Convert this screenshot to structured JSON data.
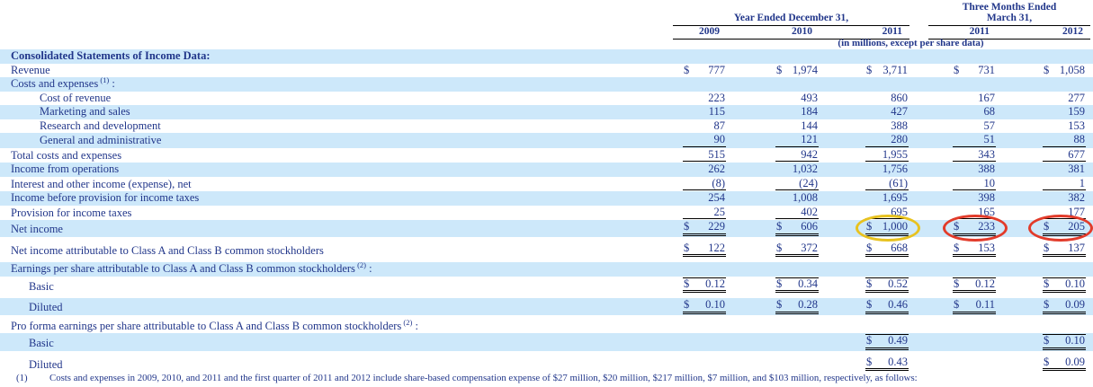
{
  "colors": {
    "text_navy": "#21368a",
    "band_blue": "#cde8fa",
    "rule_black": "#000000",
    "ring_yellow": "#e8c21f",
    "ring_red": "#e23b2a"
  },
  "header": {
    "annual_group_label": "Year Ended December 31,",
    "quarter_group_label_line1": "Three Months Ended",
    "quarter_group_label_line2": "March 31,",
    "year_columns": [
      "2009",
      "2010",
      "2011",
      "2011",
      "2012"
    ],
    "units_note": "(in millions, except per share data)"
  },
  "table": {
    "rows": [
      {
        "id": "section-income-data",
        "label": "Consolidated Statements of Income Data:",
        "bold": true,
        "shaded": true,
        "indent": 0,
        "cells": [
          null,
          null,
          null,
          null,
          null
        ]
      },
      {
        "id": "revenue",
        "label": "Revenue",
        "indent": 0,
        "cells": [
          {
            "d": "$",
            "v": "777"
          },
          {
            "d": "$",
            "v": "1,974"
          },
          {
            "d": "$",
            "v": "3,711"
          },
          {
            "d": "$",
            "v": "731"
          },
          {
            "d": "$",
            "v": "1,058"
          }
        ]
      },
      {
        "id": "costs-and-expenses",
        "label": "Costs and expenses",
        "sup": "(1)",
        "suffix": ":",
        "shaded": true,
        "indent": 0,
        "cells": [
          null,
          null,
          null,
          null,
          null
        ]
      },
      {
        "id": "cost-of-revenue",
        "label": "Cost of revenue",
        "indent": 2,
        "cells": [
          {
            "v": "223"
          },
          {
            "v": "493"
          },
          {
            "v": "860"
          },
          {
            "v": "167"
          },
          {
            "v": "277"
          }
        ]
      },
      {
        "id": "marketing-and-sales",
        "label": "Marketing and sales",
        "shaded": true,
        "indent": 2,
        "cells": [
          {
            "v": "115"
          },
          {
            "v": "184"
          },
          {
            "v": "427"
          },
          {
            "v": "68"
          },
          {
            "v": "159"
          }
        ]
      },
      {
        "id": "research-and-development",
        "label": "Research and development",
        "indent": 2,
        "cells": [
          {
            "v": "87"
          },
          {
            "v": "144"
          },
          {
            "v": "388"
          },
          {
            "v": "57"
          },
          {
            "v": "153"
          }
        ]
      },
      {
        "id": "general-and-administrative",
        "label": "General and administrative",
        "shaded": true,
        "indent": 2,
        "rule": "single",
        "cells": [
          {
            "v": "90"
          },
          {
            "v": "121"
          },
          {
            "v": "280"
          },
          {
            "v": "51"
          },
          {
            "v": "88"
          }
        ]
      },
      {
        "id": "total-costs-and-expenses",
        "label": "Total costs and expenses",
        "indent": 0,
        "rule": "single",
        "cells": [
          {
            "v": "515"
          },
          {
            "v": "942"
          },
          {
            "v": "1,955"
          },
          {
            "v": "343"
          },
          {
            "v": "677"
          }
        ]
      },
      {
        "id": "income-from-operations",
        "label": "Income from operations",
        "shaded": true,
        "indent": 0,
        "cells": [
          {
            "v": "262"
          },
          {
            "v": "1,032"
          },
          {
            "v": "1,756"
          },
          {
            "v": "388"
          },
          {
            "v": "381"
          }
        ]
      },
      {
        "id": "interest-and-other",
        "label": "Interest and other income (expense), net",
        "indent": 0,
        "rule": "single",
        "cells": [
          {
            "v": "(8)"
          },
          {
            "v": "(24)"
          },
          {
            "v": "(61)"
          },
          {
            "v": "10"
          },
          {
            "v": "1"
          }
        ]
      },
      {
        "id": "income-before-taxes",
        "label": "Income before provision for income taxes",
        "shaded": true,
        "indent": 0,
        "cells": [
          {
            "v": "254"
          },
          {
            "v": "1,008"
          },
          {
            "v": "1,695"
          },
          {
            "v": "398"
          },
          {
            "v": "382"
          }
        ]
      },
      {
        "id": "provision-for-income-taxes",
        "label": "Provision for income taxes",
        "indent": 0,
        "rule": "single",
        "cells": [
          {
            "v": "25"
          },
          {
            "v": "402"
          },
          {
            "v": "695"
          },
          {
            "v": "165"
          },
          {
            "v": "177"
          }
        ]
      },
      {
        "id": "net-income",
        "label": "Net income",
        "shaded": true,
        "indent": 0,
        "rule": "double",
        "gap": true,
        "rings": {
          "2": "yellow",
          "3": "red",
          "4": "red"
        },
        "cells": [
          {
            "d": "$",
            "v": "229"
          },
          {
            "d": "$",
            "v": "606"
          },
          {
            "d": "$",
            "v": "1,000"
          },
          {
            "d": "$",
            "v": "233"
          },
          {
            "d": "$",
            "v": "205"
          }
        ]
      },
      {
        "id": "net-income-attributable",
        "label": "Net income attributable to Class A and Class B common stockholders",
        "indent": 0,
        "rule": "double",
        "gap": true,
        "cells": [
          {
            "d": "$",
            "v": "122"
          },
          {
            "d": "$",
            "v": "372"
          },
          {
            "d": "$",
            "v": "668"
          },
          {
            "d": "$",
            "v": "153"
          },
          {
            "d": "$",
            "v": "137"
          }
        ]
      },
      {
        "id": "eps-header",
        "label": "Earnings per share attributable to Class A and Class B common stockholders",
        "sup": "(2)",
        "suffix": ":",
        "shaded": true,
        "indent": 0,
        "cells": [
          null,
          null,
          null,
          null,
          null
        ]
      },
      {
        "id": "eps-basic",
        "label": "Basic",
        "indent": 1,
        "rule": "double",
        "toprule": true,
        "gap": true,
        "cells": [
          {
            "d": "$",
            "v": "0.12"
          },
          {
            "d": "$",
            "v": "0.34"
          },
          {
            "d": "$",
            "v": "0.52"
          },
          {
            "d": "$",
            "v": "0.12"
          },
          {
            "d": "$",
            "v": "0.10"
          }
        ]
      },
      {
        "id": "eps-diluted",
        "label": "Diluted",
        "shaded": true,
        "indent": 1,
        "rule": "double",
        "gap": true,
        "cells": [
          {
            "d": "$",
            "v": "0.10"
          },
          {
            "d": "$",
            "v": "0.28"
          },
          {
            "d": "$",
            "v": "0.46"
          },
          {
            "d": "$",
            "v": "0.11"
          },
          {
            "d": "$",
            "v": "0.09"
          }
        ]
      },
      {
        "id": "proforma-eps-header",
        "label": "Pro forma earnings per share attributable to Class A and Class B common stockholders",
        "sup": "(2)",
        "suffix": ":",
        "indent": 0,
        "cells": [
          null,
          null,
          null,
          null,
          null
        ]
      },
      {
        "id": "proforma-basic",
        "label": "Basic",
        "shaded": true,
        "indent": 1,
        "rule": "double",
        "toprule": true,
        "gap": true,
        "cells": [
          null,
          null,
          {
            "d": "$",
            "v": "0.49"
          },
          null,
          {
            "d": "$",
            "v": "0.10"
          }
        ]
      },
      {
        "id": "proforma-diluted",
        "label": "Diluted",
        "indent": 1,
        "rule": "double",
        "gap": true,
        "cells": [
          null,
          null,
          {
            "d": "$",
            "v": "0.43"
          },
          null,
          {
            "d": "$",
            "v": "0.09"
          }
        ]
      }
    ]
  },
  "footnote": {
    "marker": "(1)",
    "text": "Costs and expenses in 2009, 2010, and 2011 and the first quarter of 2011 and 2012 include share-based compensation expense of $27 million, $20 million, $217 million, $7 million, and $103 million, respectively, as follows:"
  }
}
